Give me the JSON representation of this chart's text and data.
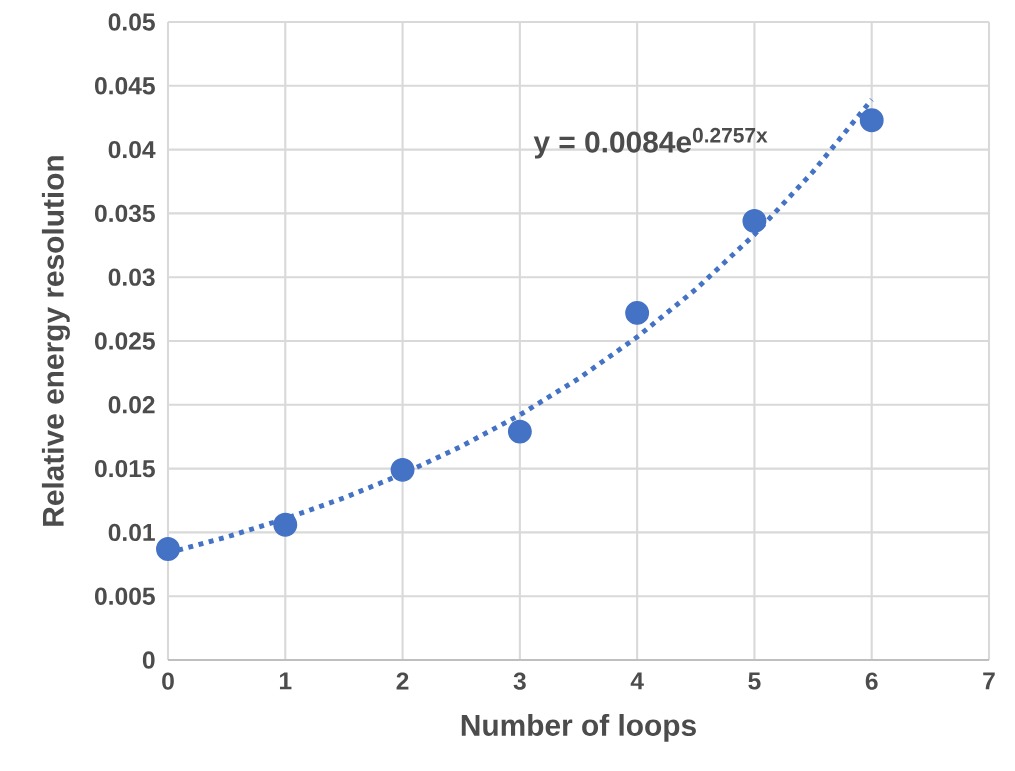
{
  "chart_data": {
    "type": "scatter",
    "xlabel": "Number of loops",
    "ylabel": "Relative energy resolution",
    "x": [
      0,
      1,
      2,
      3,
      4,
      5,
      6
    ],
    "series": [
      {
        "color": "#4472c4",
        "marker": "circle",
        "values": [
          0.0087,
          0.0106,
          0.0149,
          0.0179,
          0.0272,
          0.0344,
          0.0423
        ]
      },
      {
        "type": "line",
        "color": "#4472c4",
        "line_style": "dotted",
        "marker": "none",
        "x": [
          0,
          0.5,
          1,
          1.5,
          2,
          2.5,
          3,
          3.5,
          4,
          4.5,
          5,
          5.5,
          6
        ],
        "values": [
          0.0084,
          0.00964,
          0.01107,
          0.0127,
          0.01458,
          0.01674,
          0.01921,
          0.02205,
          0.02531,
          0.02905,
          0.03334,
          0.03827,
          0.04392
        ]
      }
    ],
    "annotations": [
      "**y = 0.0084e$^{0.2757x}$**"
    ],
    "xlim": [
      0,
      7
    ],
    "ylim": [
      0,
      0.05
    ],
    "xticks": [
      0,
      1,
      2,
      3,
      4,
      5,
      6,
      7
    ],
    "yticks": [
      0,
      0.005,
      0.01,
      0.015,
      0.02,
      0.025,
      0.03,
      0.035,
      0.04,
      0.045,
      0.05
    ],
    "grid": true
  }
}
